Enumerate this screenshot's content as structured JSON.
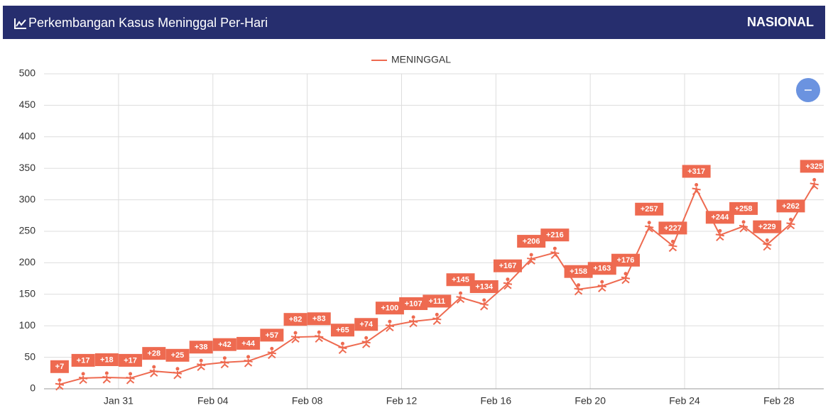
{
  "header": {
    "title": "Perkembangan Kasus Meninggal Per-Hari",
    "badge": "NASIONAL"
  },
  "chart_data": {
    "type": "line",
    "x": [
      28.5,
      29.5,
      30.5,
      31.5,
      32.5,
      33.5,
      34.5,
      35.5,
      36.5,
      37.5,
      38.5,
      39.5,
      40.5,
      41.5,
      42.5,
      43.5,
      44.5,
      45.5,
      46.5,
      47.5,
      48.5,
      49.5,
      50.5,
      51.5,
      52.5,
      53.5,
      54.5,
      55.5,
      56.5,
      57.5,
      58.5,
      59.5,
      60.5
    ],
    "series": [
      {
        "name": "MENINGGAL",
        "color": "#ee6a50",
        "values": [
          7,
          17,
          18,
          17,
          28,
          25,
          38,
          42,
          44,
          57,
          82,
          83,
          65,
          74,
          100,
          107,
          111,
          145,
          134,
          167,
          206,
          216,
          158,
          163,
          176,
          257,
          227,
          317,
          244,
          258,
          229,
          262,
          325
        ],
        "value_labels": [
          "+7",
          "+17",
          "+18",
          "+17",
          "+28",
          "+25",
          "+38",
          "+42",
          "+44",
          "+57",
          "+82",
          "+83",
          "+65",
          "+74",
          "+100",
          "+107",
          "+111",
          "+145",
          "+134",
          "+167",
          "+206",
          "+216",
          "+158",
          "+163",
          "+176",
          "+257",
          "+227",
          "+317",
          "+244",
          "+258",
          "+229",
          "+262",
          "+325"
        ]
      }
    ],
    "xlim": [
      27.84,
      60.9
    ],
    "xticks": [
      {
        "value": 31,
        "label": "Jan 31"
      },
      {
        "value": 35,
        "label": "Feb 04"
      },
      {
        "value": 39,
        "label": "Feb 08"
      },
      {
        "value": 43,
        "label": "Feb 12"
      },
      {
        "value": 47,
        "label": "Feb 16"
      },
      {
        "value": 51,
        "label": "Feb 20"
      },
      {
        "value": 55,
        "label": "Feb 24"
      },
      {
        "value": 59,
        "label": "Feb 28"
      }
    ],
    "ylim": [
      0,
      500
    ],
    "yticks": [
      0,
      50,
      100,
      150,
      200,
      250,
      300,
      350,
      400,
      450,
      500
    ],
    "grid": true,
    "legend": "top"
  }
}
